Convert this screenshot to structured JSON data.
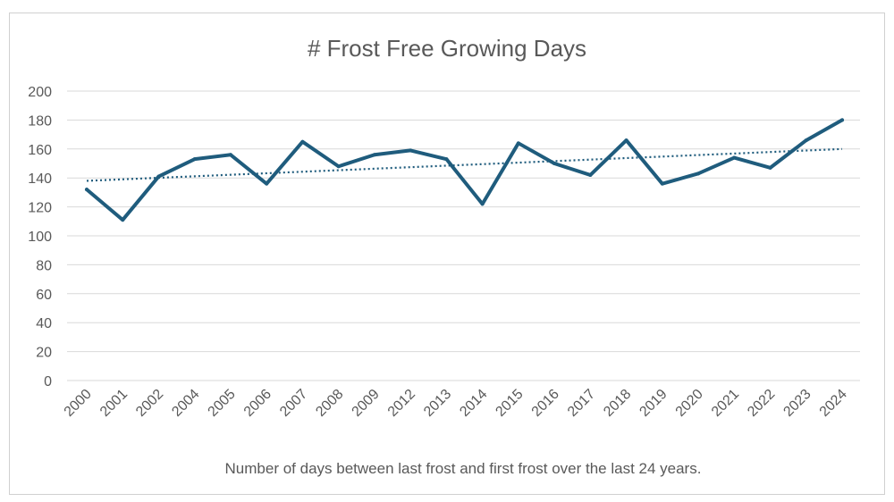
{
  "chart_data": {
    "type": "line",
    "title": "# Frost Free Growing Days",
    "caption": "Number of days between last frost and first frost over the last 24 years.",
    "categories": [
      "2000",
      "2001",
      "2002",
      "2004",
      "2005",
      "2006",
      "2007",
      "2008",
      "2009",
      "2012",
      "2013",
      "2014",
      "2015",
      "2016",
      "2017",
      "2018",
      "2019",
      "2020",
      "2021",
      "2022",
      "2023",
      "2024"
    ],
    "series": [
      {
        "values": [
          132,
          111,
          141,
          153,
          156,
          136,
          165,
          148,
          156,
          159,
          153,
          122,
          164,
          150,
          142,
          166,
          136,
          143,
          154,
          147,
          166,
          180
        ],
        "color": "#1f5c7d"
      }
    ],
    "trendline": {
      "type": "linear",
      "style": "dotted",
      "start": 138,
      "end": 160,
      "color": "#1f5c7d"
    },
    "ylim": [
      0,
      200
    ],
    "yticks": [
      0,
      20,
      40,
      60,
      80,
      100,
      120,
      140,
      160,
      180,
      200
    ],
    "grid": true,
    "legend": "none",
    "gridColor": "#d9d9d9"
  }
}
